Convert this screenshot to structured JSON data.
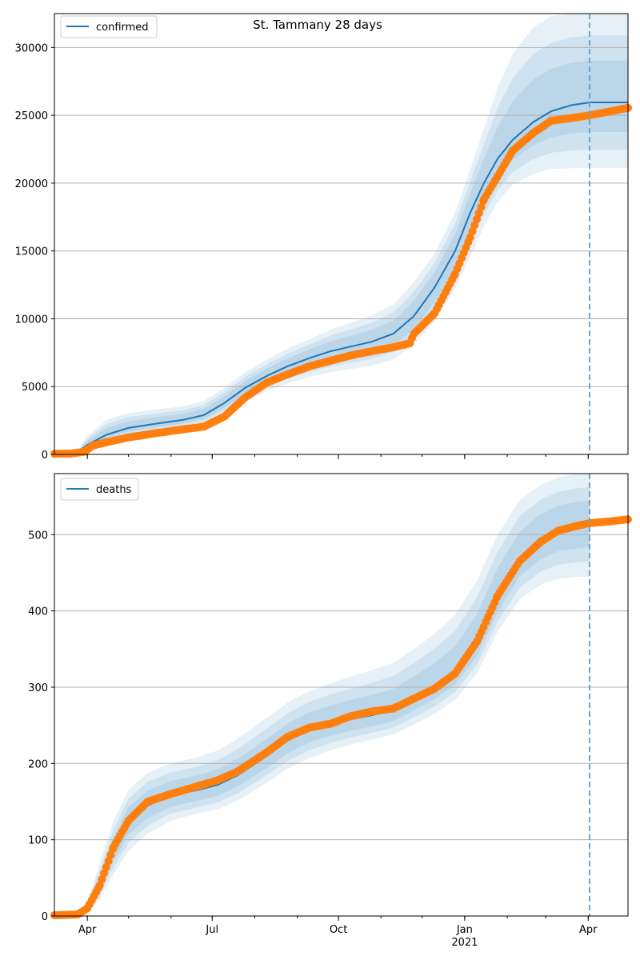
{
  "title": "St. Tammany 28 days",
  "colors": {
    "model_line": "#1f77b4",
    "band": "#1f77b4",
    "observed": "#ff7f0e",
    "grid": "#b0b0b0",
    "forecast_marker": "#6fa3c9"
  },
  "x_axis": {
    "start": "2020-03-08",
    "end": "2021-04-30",
    "forecast_date": "2021-04-02",
    "ticks": [
      {
        "date": "2020-04-01",
        "label": "Apr",
        "sublabel": ""
      },
      {
        "date": "2020-07-01",
        "label": "Jul",
        "sublabel": ""
      },
      {
        "date": "2020-10-01",
        "label": "Oct",
        "sublabel": ""
      },
      {
        "date": "2021-01-01",
        "label": "Jan",
        "sublabel": "2021"
      },
      {
        "date": "2021-04-01",
        "label": "Apr",
        "sublabel": ""
      }
    ]
  },
  "chart_data": [
    {
      "type": "line",
      "legend": "confirmed",
      "legend_position": "upper-left",
      "grid": "horizontal",
      "ylim": [
        0,
        32500
      ],
      "yticks": [
        0,
        5000,
        10000,
        15000,
        20000,
        25000,
        30000
      ],
      "model": {
        "x": [
          "2020-03-08",
          "2020-03-25",
          "2020-04-01",
          "2020-04-15",
          "2020-05-01",
          "2020-05-20",
          "2020-06-10",
          "2020-06-25",
          "2020-07-10",
          "2020-07-25",
          "2020-08-10",
          "2020-08-25",
          "2020-09-10",
          "2020-09-25",
          "2020-10-10",
          "2020-10-25",
          "2020-11-10",
          "2020-11-25",
          "2020-12-10",
          "2020-12-25",
          "2021-01-05",
          "2021-01-15",
          "2021-01-25",
          "2021-02-05",
          "2021-02-20",
          "2021-03-05",
          "2021-03-20",
          "2021-04-02",
          "2021-04-30"
        ],
        "y": [
          0,
          150,
          700,
          1450,
          1950,
          2250,
          2550,
          2900,
          3800,
          4900,
          5800,
          6500,
          7100,
          7600,
          7950,
          8300,
          8900,
          10200,
          12300,
          15000,
          17800,
          20000,
          21800,
          23200,
          24500,
          25300,
          25750,
          25950,
          25950
        ],
        "lower": [
          0,
          90,
          450,
          950,
          1350,
          1650,
          1950,
          2250,
          3000,
          3900,
          4700,
          5250,
          5700,
          6050,
          6300,
          6550,
          7000,
          8100,
          9800,
          12200,
          14600,
          16800,
          18600,
          19900,
          20700,
          21050,
          21100,
          21100,
          21100
        ],
        "upper": [
          0,
          300,
          1350,
          2550,
          3050,
          3300,
          3550,
          3950,
          4900,
          6050,
          7000,
          7800,
          8500,
          9200,
          9700,
          10250,
          11050,
          12700,
          14800,
          17800,
          21000,
          24000,
          27000,
          29500,
          31500,
          32300,
          32700,
          32800,
          32800
        ]
      },
      "observed": {
        "x": [
          "2020-03-08",
          "2020-03-20",
          "2020-03-30",
          "2020-04-05",
          "2020-04-15",
          "2020-05-01",
          "2020-05-20",
          "2020-06-10",
          "2020-06-25",
          "2020-07-10",
          "2020-07-25",
          "2020-08-10",
          "2020-08-25",
          "2020-09-10",
          "2020-09-25",
          "2020-10-10",
          "2020-10-25",
          "2020-11-10",
          "2020-11-22",
          "2020-11-25",
          "2020-12-10",
          "2020-12-25",
          "2021-01-05",
          "2021-01-15",
          "2021-01-25",
          "2021-02-05",
          "2021-02-20",
          "2021-03-05",
          "2021-03-20",
          "2021-04-02",
          "2021-04-15",
          "2021-04-30"
        ],
        "y": [
          50,
          60,
          200,
          650,
          900,
          1250,
          1550,
          1850,
          2050,
          2800,
          4200,
          5300,
          5900,
          6500,
          6900,
          7300,
          7600,
          7900,
          8200,
          8900,
          10400,
          13300,
          16000,
          18800,
          20500,
          22400,
          23700,
          24600,
          24800,
          25000,
          25250,
          25550
        ]
      }
    },
    {
      "type": "line",
      "legend": "deaths",
      "legend_position": "upper-left",
      "grid": "horizontal",
      "ylim": [
        0,
        580
      ],
      "yticks": [
        0,
        100,
        200,
        300,
        400,
        500
      ],
      "model": {
        "x": [
          "2020-03-08",
          "2020-03-25",
          "2020-04-01",
          "2020-04-10",
          "2020-04-20",
          "2020-05-01",
          "2020-05-15",
          "2020-06-01",
          "2020-06-20",
          "2020-07-05",
          "2020-07-20",
          "2020-08-10",
          "2020-08-25",
          "2020-09-10",
          "2020-09-25",
          "2020-10-10",
          "2020-10-25",
          "2020-11-10",
          "2020-11-25",
          "2020-12-10",
          "2020-12-25",
          "2021-01-10",
          "2021-01-25",
          "2021-02-10",
          "2021-02-25",
          "2021-03-10",
          "2021-03-25",
          "2021-04-02"
        ],
        "y": [
          0,
          2,
          10,
          40,
          85,
          125,
          145,
          158,
          165,
          172,
          185,
          210,
          230,
          245,
          252,
          258,
          263,
          270,
          285,
          300,
          320,
          360,
          420,
          470,
          495,
          508,
          513,
          515
        ],
        "lower": [
          0,
          1,
          5,
          22,
          55,
          85,
          108,
          125,
          134,
          140,
          152,
          175,
          193,
          207,
          217,
          225,
          231,
          238,
          251,
          265,
          283,
          318,
          373,
          415,
          434,
          442,
          445,
          445
        ],
        "upper": [
          0,
          4,
          20,
          68,
          125,
          165,
          188,
          200,
          208,
          217,
          233,
          260,
          280,
          295,
          305,
          314,
          322,
          332,
          350,
          370,
          395,
          440,
          500,
          545,
          565,
          575,
          580,
          580
        ]
      },
      "observed": {
        "x": [
          "2020-03-08",
          "2020-03-25",
          "2020-04-01",
          "2020-04-10",
          "2020-04-20",
          "2020-05-01",
          "2020-05-15",
          "2020-06-01",
          "2020-06-20",
          "2020-07-05",
          "2020-07-20",
          "2020-08-10",
          "2020-08-25",
          "2020-09-10",
          "2020-09-25",
          "2020-10-10",
          "2020-10-25",
          "2020-11-10",
          "2020-11-25",
          "2020-12-10",
          "2020-12-25",
          "2021-01-10",
          "2021-01-25",
          "2021-02-10",
          "2021-02-25",
          "2021-03-10",
          "2021-03-25",
          "2021-04-02",
          "2021-04-15",
          "2021-04-30"
        ],
        "y": [
          1,
          2,
          10,
          40,
          90,
          125,
          150,
          160,
          170,
          178,
          190,
          215,
          235,
          247,
          252,
          262,
          268,
          272,
          285,
          298,
          318,
          360,
          420,
          465,
          490,
          505,
          512,
          515,
          517,
          520
        ]
      }
    }
  ]
}
